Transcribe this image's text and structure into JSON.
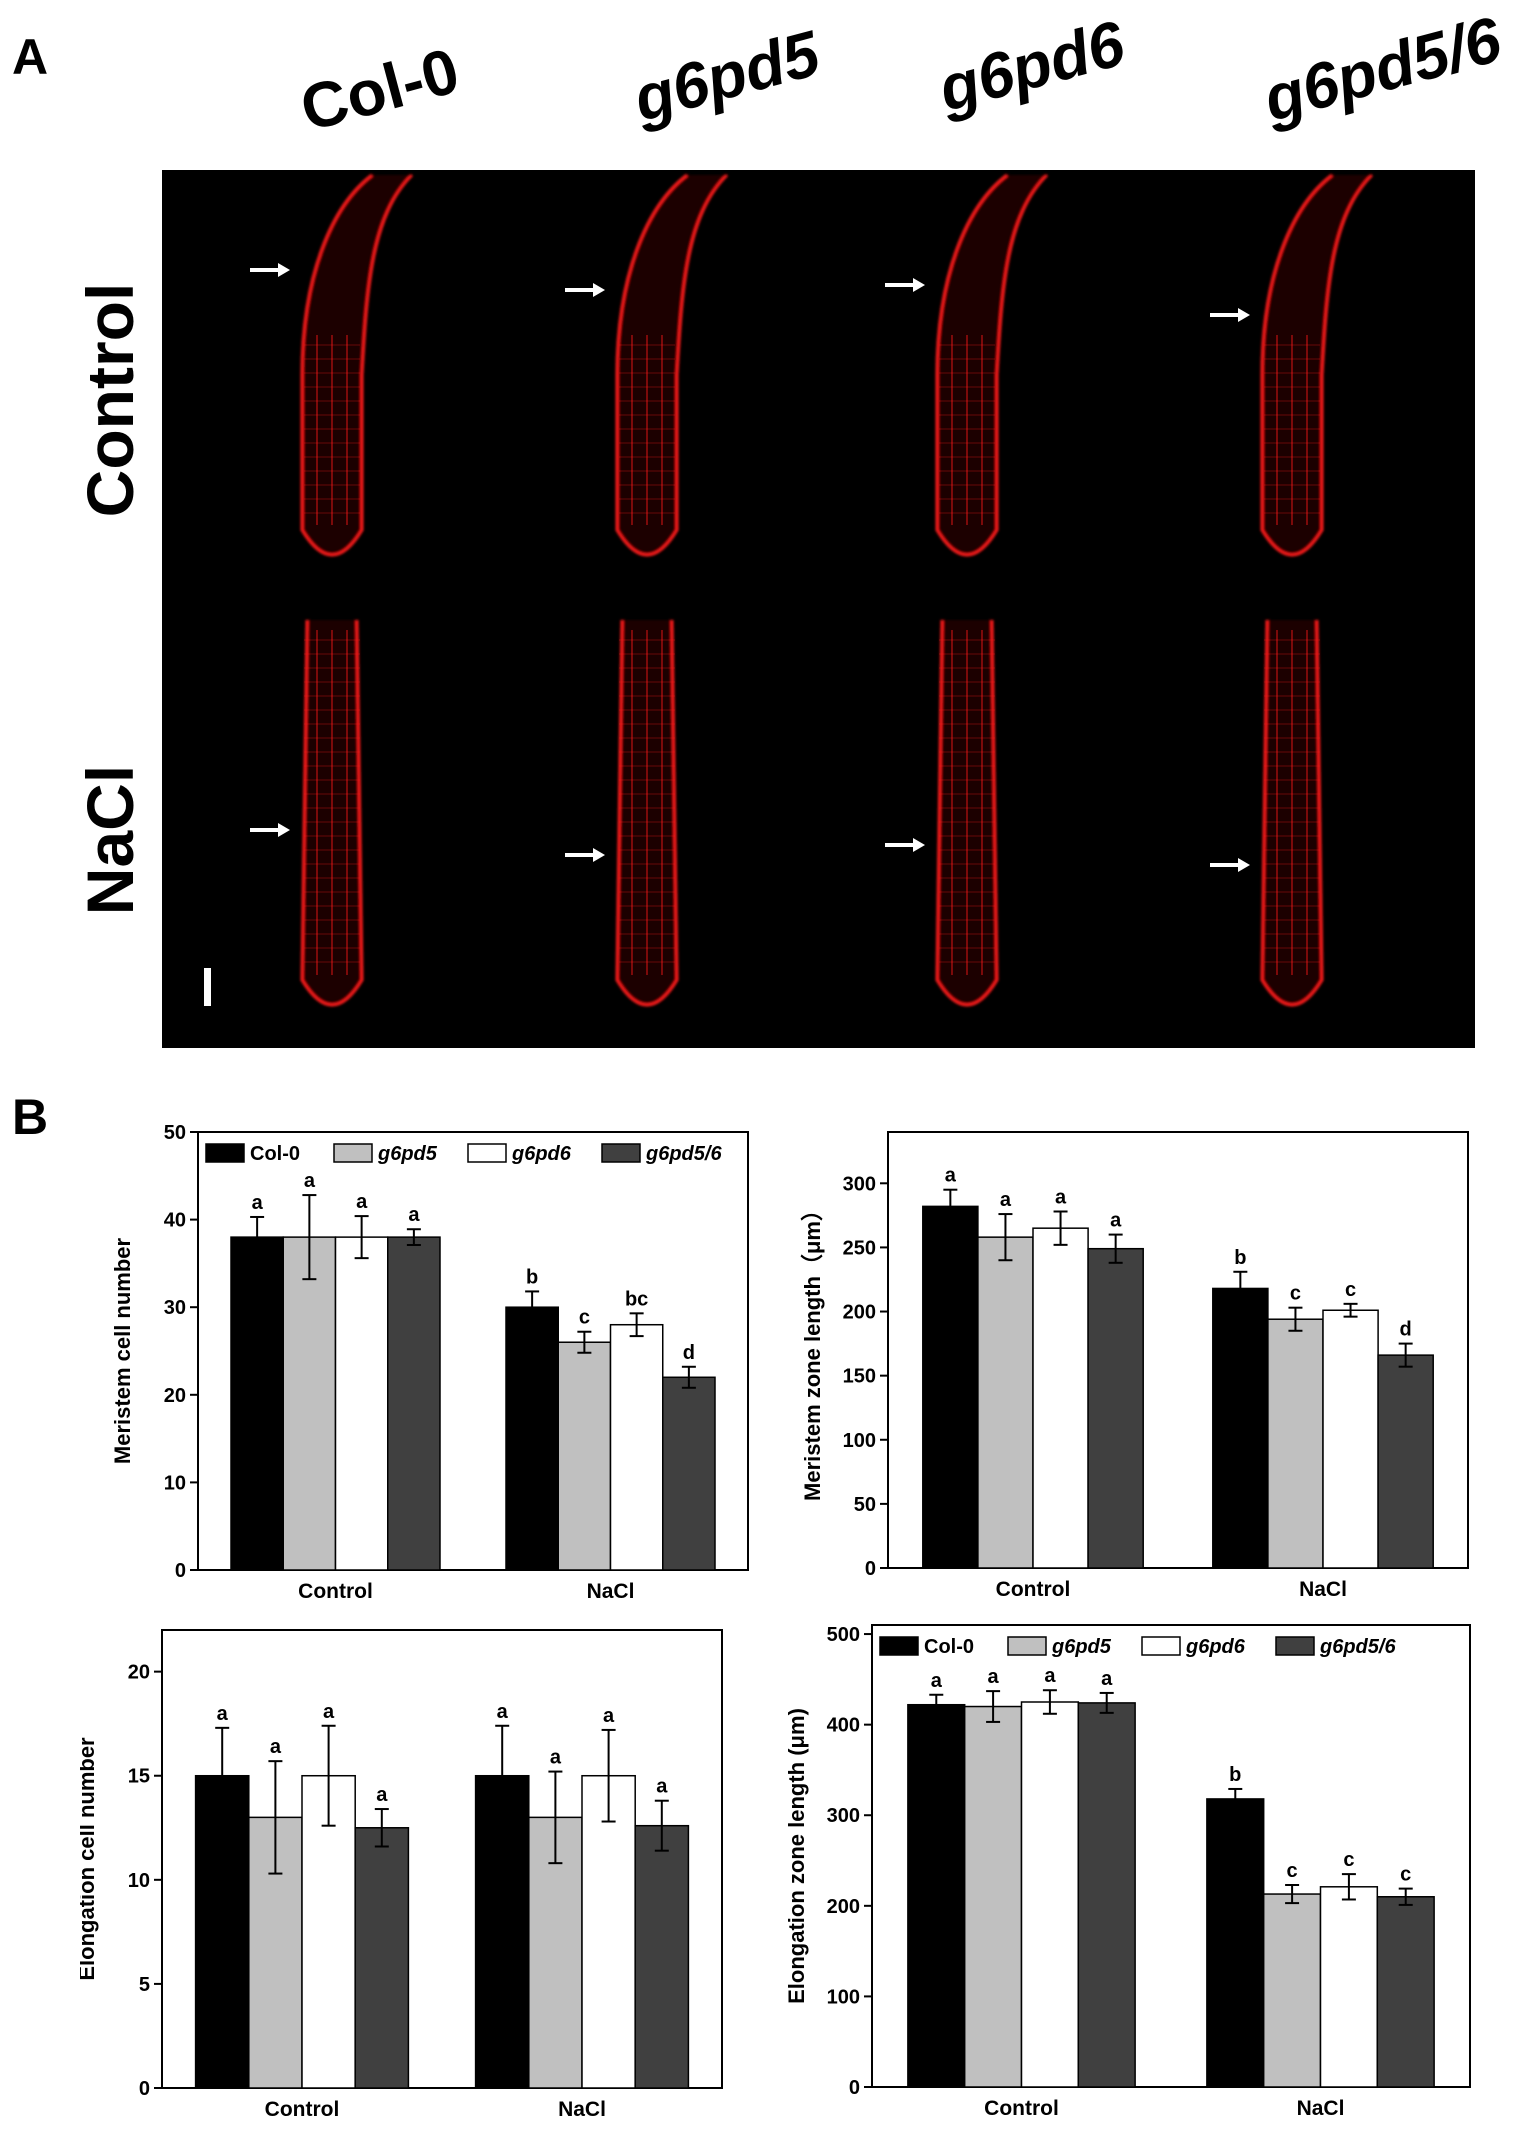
{
  "panelA": {
    "letter": "A",
    "genotypes": [
      "Col-0",
      "g6pd5",
      "g6pd6",
      "g6pd5/6"
    ],
    "rows": [
      "Control",
      "NaCl"
    ]
  },
  "panelB": {
    "letter": "B"
  },
  "colors": {
    "col0": "#000000",
    "g6pd5": "#c0c0c0",
    "g6pd6": "#ffffff",
    "g6pd56": "#404040",
    "stain": "#ff1a1a"
  },
  "chart_data": [
    {
      "type": "bar",
      "ylabel": "Meristem cell number",
      "categories": [
        "Control",
        "NaCl"
      ],
      "ylim": [
        0,
        50
      ],
      "yticks": [
        0,
        10,
        20,
        30,
        40,
        50
      ],
      "legend": "top",
      "series": [
        {
          "name": "Col-0",
          "values": [
            38,
            30
          ],
          "errors": [
            2.3,
            1.8
          ],
          "letters": [
            "a",
            "b"
          ]
        },
        {
          "name": "g6pd5",
          "values": [
            38,
            26
          ],
          "errors": [
            4.8,
            1.2
          ],
          "letters": [
            "a",
            "c"
          ]
        },
        {
          "name": "g6pd6",
          "values": [
            38,
            28
          ],
          "errors": [
            2.4,
            1.3
          ],
          "letters": [
            "a",
            "bc"
          ]
        },
        {
          "name": "g6pd5/6",
          "values": [
            38,
            22
          ],
          "errors": [
            0.9,
            1.2
          ],
          "letters": [
            "a",
            "d"
          ]
        }
      ]
    },
    {
      "type": "bar",
      "ylabel": "Meristem zone length（μm）",
      "categories": [
        "Control",
        "NaCl"
      ],
      "ylim": [
        0,
        340
      ],
      "yticks": [
        0,
        50,
        100,
        150,
        200,
        250,
        300
      ],
      "series": [
        {
          "name": "Col-0",
          "values": [
            282,
            218
          ],
          "errors": [
            13,
            13
          ],
          "letters": [
            "a",
            "b"
          ]
        },
        {
          "name": "g6pd5",
          "values": [
            258,
            194
          ],
          "errors": [
            18,
            9
          ],
          "letters": [
            "a",
            "c"
          ]
        },
        {
          "name": "g6pd6",
          "values": [
            265,
            201
          ],
          "errors": [
            13,
            5
          ],
          "letters": [
            "a",
            "c"
          ]
        },
        {
          "name": "g6pd5/6",
          "values": [
            249,
            166
          ],
          "errors": [
            11,
            9
          ],
          "letters": [
            "a",
            "d"
          ]
        }
      ]
    },
    {
      "type": "bar",
      "ylabel": "Elongation cell number",
      "categories": [
        "Control",
        "NaCl"
      ],
      "ylim": [
        0,
        22
      ],
      "yticks": [
        0,
        5,
        10,
        15,
        20
      ],
      "series": [
        {
          "name": "Col-0",
          "values": [
            15,
            15
          ],
          "errors": [
            2.3,
            2.4
          ],
          "letters": [
            "a",
            "a"
          ]
        },
        {
          "name": "g6pd5",
          "values": [
            13,
            13
          ],
          "errors": [
            2.7,
            2.2
          ],
          "letters": [
            "a",
            "a"
          ]
        },
        {
          "name": "g6pd6",
          "values": [
            15,
            15
          ],
          "errors": [
            2.4,
            2.2
          ],
          "letters": [
            "a",
            "a"
          ]
        },
        {
          "name": "g6pd5/6",
          "values": [
            12.5,
            12.6
          ],
          "errors": [
            0.9,
            1.2
          ],
          "letters": [
            "a",
            "a"
          ]
        }
      ]
    },
    {
      "type": "bar",
      "ylabel": "Elongation zone length (μm)",
      "categories": [
        "Control",
        "NaCl"
      ],
      "ylim": [
        0,
        510
      ],
      "yticks": [
        0,
        100,
        200,
        300,
        400,
        500
      ],
      "legend": "top",
      "series": [
        {
          "name": "Col-0",
          "values": [
            422,
            318
          ],
          "errors": [
            11,
            11
          ],
          "letters": [
            "a",
            "b"
          ]
        },
        {
          "name": "g6pd5",
          "values": [
            420,
            213
          ],
          "errors": [
            17,
            10
          ],
          "letters": [
            "a",
            "c"
          ]
        },
        {
          "name": "g6pd6",
          "values": [
            425,
            221
          ],
          "errors": [
            13,
            14
          ],
          "letters": [
            "a",
            "c"
          ]
        },
        {
          "name": "g6pd5/6",
          "values": [
            424,
            210
          ],
          "errors": [
            11,
            9
          ],
          "letters": [
            "a",
            "c"
          ]
        }
      ]
    }
  ]
}
